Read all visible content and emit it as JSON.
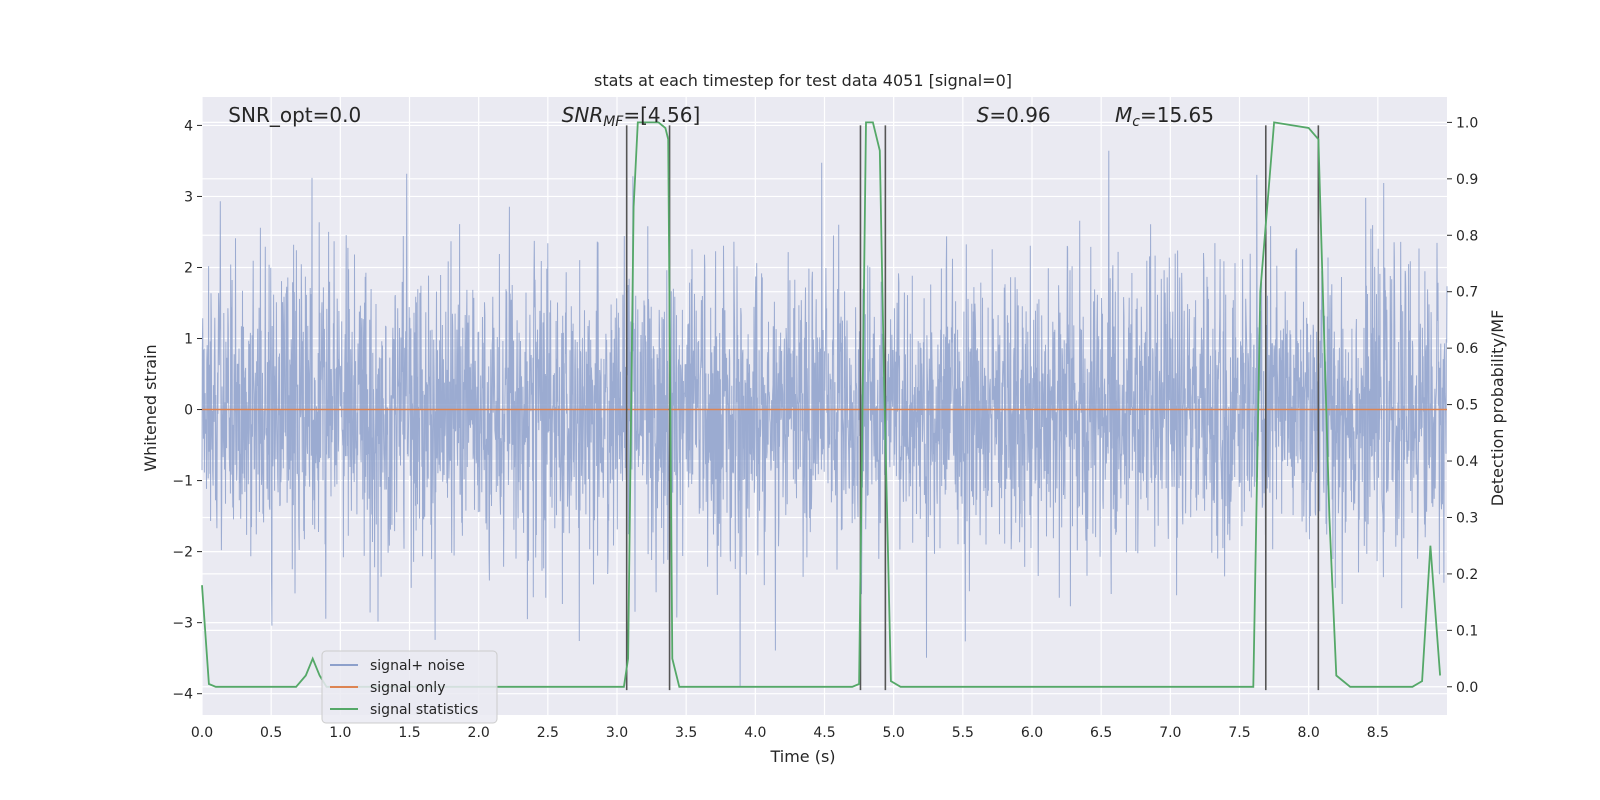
{
  "chart_data": {
    "type": "line",
    "title": "stats at each timestep for test data 4051 [signal=0]",
    "xlabel": "Time (s)",
    "ylabel": "Whitened strain",
    "ylabel_right": "Detection probability/MF",
    "xlim": [
      0,
      9
    ],
    "ylim": [
      -4.3,
      4.4
    ],
    "ylim_right": [
      -0.05,
      1.045
    ],
    "x_ticks": [
      "0.0",
      "0.5",
      "1.0",
      "1.5",
      "2.0",
      "2.5",
      "3.0",
      "3.5",
      "4.0",
      "4.5",
      "5.0",
      "5.5",
      "6.0",
      "6.5",
      "7.0",
      "7.5",
      "8.0",
      "8.5"
    ],
    "y_ticks": [
      "4",
      "3",
      "2",
      "1",
      "0",
      "−1",
      "−2",
      "−3",
      "−4"
    ],
    "y_ticks_right": [
      "1.0",
      "0.9",
      "0.8",
      "0.7",
      "0.6",
      "0.5",
      "0.4",
      "0.3",
      "0.2",
      "0.1",
      "0.0"
    ],
    "grid": true,
    "legend_position": "lower-left",
    "annotations": [
      {
        "text": "SNR_opt=0.0",
        "x": 0.19,
        "y": 4.05
      },
      {
        "text": "SNR",
        "sub": "MF",
        "tail": "=[4.56]",
        "x": 2.6,
        "y": 4.05
      },
      {
        "text": "S",
        "tail": "=0.96",
        "x": 5.6,
        "y": 4.05
      },
      {
        "text": "M",
        "sub": "c",
        "tail": "=15.65",
        "x": 6.6,
        "y": 4.05
      }
    ],
    "series": [
      {
        "name": "signal+ noise",
        "axis": "left",
        "kind": "noise",
        "color": "#8da0cb",
        "amplitude_std": 1.0,
        "range": [
          -3.9,
          3.9
        ]
      },
      {
        "name": "signal only",
        "axis": "left",
        "color": "#dd8452",
        "x": [
          0,
          9
        ],
        "y": [
          0,
          0
        ]
      },
      {
        "name": "signal statistics",
        "axis": "right",
        "color": "#55a868",
        "x": [
          0.0,
          0.05,
          0.1,
          0.68,
          0.75,
          0.8,
          0.85,
          0.9,
          1.3,
          3.05,
          3.08,
          3.12,
          3.15,
          3.3,
          3.35,
          3.37,
          3.4,
          3.45,
          4.7,
          4.75,
          4.8,
          4.85,
          4.9,
          4.93,
          4.98,
          5.05,
          7.6,
          7.65,
          7.75,
          8.0,
          8.07,
          8.15,
          8.2,
          8.3,
          8.4,
          8.6,
          8.75,
          8.82,
          8.88,
          8.95
        ],
        "y": [
          0.18,
          0.005,
          0.0,
          0.0,
          0.02,
          0.05,
          0.02,
          0.0,
          0.0,
          0.0,
          0.05,
          0.85,
          1.0,
          1.0,
          0.99,
          0.97,
          0.05,
          0.0,
          0.0,
          0.005,
          1.0,
          1.0,
          0.95,
          0.55,
          0.01,
          0.0,
          0.0,
          0.7,
          1.0,
          0.99,
          0.97,
          0.3,
          0.02,
          0.0,
          0.0,
          0.0,
          0.0,
          0.01,
          0.25,
          0.02
        ]
      },
      {
        "name": "",
        "kind": "vlines",
        "color": "#555555",
        "x": [
          3.07,
          3.38,
          4.76,
          4.94,
          7.69,
          8.07
        ],
        "y_range": [
          -3.95,
          4.0
        ]
      }
    ],
    "legend": [
      {
        "label": "signal+ noise",
        "color": "#8da0cb"
      },
      {
        "label": "signal only",
        "color": "#dd8452"
      },
      {
        "label": "signal statistics",
        "color": "#55a868"
      }
    ]
  },
  "colors": {
    "plot_background": "#eaeaf2",
    "grid": "#ffffff",
    "noise": "#8da0cb",
    "signal": "#dd8452",
    "statistics": "#55a868",
    "vline": "#555555"
  }
}
